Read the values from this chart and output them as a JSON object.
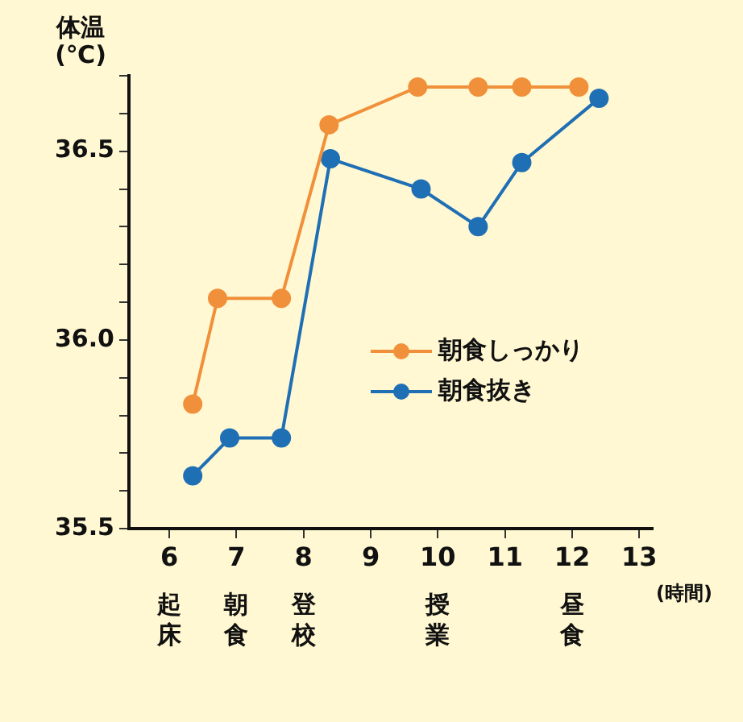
{
  "chart_data": {
    "type": "line",
    "ylabel": "体温\n(℃)",
    "xlabel": "(時間)",
    "xlim": [
      5.4,
      13.2
    ],
    "xticks": [
      6,
      7,
      8,
      9,
      10,
      11,
      12,
      13
    ],
    "ylim": [
      35.5,
      36.7
    ],
    "yticks": [
      35.5,
      {
        "value": 35.6,
        "label": null
      },
      {
        "value": 35.7,
        "label": null
      },
      {
        "value": 35.8,
        "label": null
      },
      {
        "value": 35.9,
        "label": null
      },
      {
        "value": 36.0,
        "label": "36.0"
      },
      {
        "value": 36.1,
        "label": null
      },
      {
        "value": 36.2,
        "label": null
      },
      {
        "value": 36.3,
        "label": null
      },
      {
        "value": 36.4,
        "label": null
      },
      36.5,
      {
        "value": 36.6,
        "label": null
      },
      {
        "value": 36.7,
        "label": null
      }
    ],
    "series": [
      {
        "name": "朝食しっかり",
        "color": "#f0903a",
        "x": [
          6.35,
          6.72,
          7.67,
          8.38,
          9.7,
          10.6,
          11.25,
          12.1
        ],
        "values": [
          35.83,
          36.11,
          36.11,
          36.57,
          36.67,
          36.67,
          36.67,
          36.67
        ]
      },
      {
        "name": "朝食抜き",
        "color": "#1f6fb5",
        "x": [
          6.35,
          6.9,
          7.67,
          8.4,
          9.75,
          10.6,
          11.25,
          12.4
        ],
        "values": [
          35.64,
          35.74,
          35.74,
          36.48,
          36.4,
          36.3,
          36.47,
          36.64
        ]
      }
    ],
    "annotations": [
      "起床",
      "朝食",
      "登校",
      "授業",
      "昼食"
    ],
    "marker": "circle",
    "legend": "bottom right",
    "grid": false
  }
}
